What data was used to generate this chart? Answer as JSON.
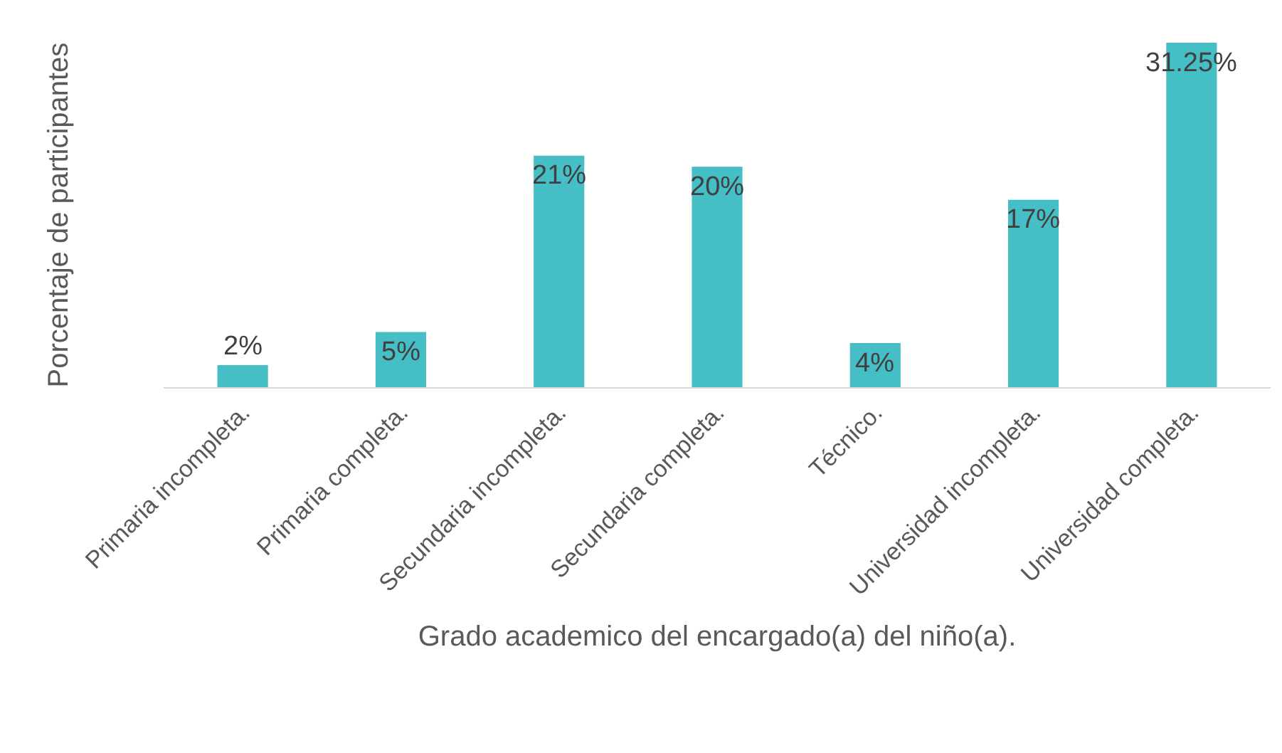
{
  "chart_data": {
    "type": "bar",
    "xlabel": "Grado academico del encargado(a) del niño(a).",
    "ylabel": "Porcentaje de participantes",
    "categories": [
      "Primaria incompleta.",
      "Primaria completa.",
      "Secundaria incompleta.",
      "Secundaria completa.",
      "Técnico.",
      "Universidad incompleta.",
      "Universidad completa."
    ],
    "values": [
      2,
      5,
      21,
      20,
      4,
      17,
      31.25
    ],
    "value_labels": [
      "2%",
      "5%",
      "21%",
      "20%",
      "4%",
      "17%",
      "31.25%"
    ],
    "color": "#45bec6",
    "grid": false,
    "legend": false
  }
}
